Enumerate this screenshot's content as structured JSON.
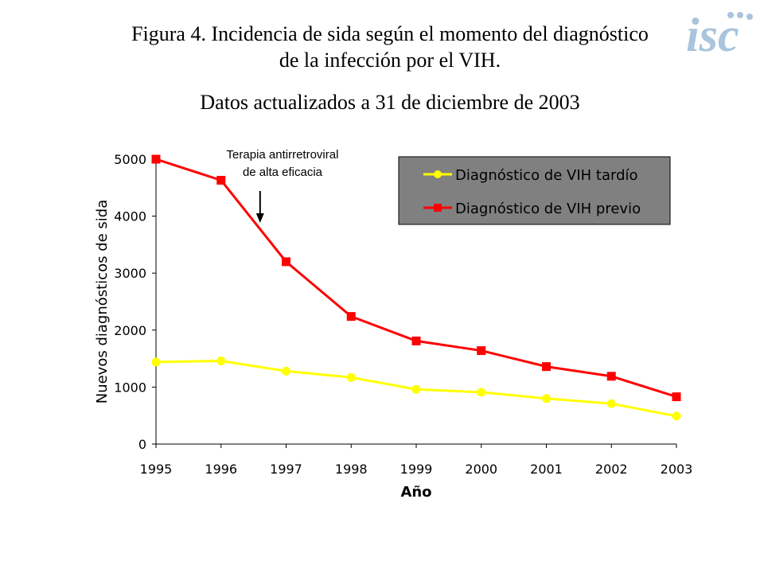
{
  "header": {
    "title_line1": "Figura 4. Incidencia de sida según el momento del diagnóstico",
    "title_line2": "de la infección por el VIH.",
    "subtitle": "Datos actualizados a 31 de diciembre de 2003",
    "logo_text": "isc"
  },
  "annotation": {
    "line1": "Terapia antirretroviral",
    "line2": "de alta eficacia",
    "arrow_x": 1996.6
  },
  "colors": {
    "series_late": "#ffff00",
    "series_prev": "#ff0000",
    "legend_bg": "#808080",
    "logo": "#a9c4dc"
  },
  "chart_data": {
    "type": "line",
    "xlabel": "Año",
    "ylabel": "Nuevos diagnósticos de sida",
    "x": [
      1995,
      1996,
      1997,
      1998,
      1999,
      2000,
      2001,
      2002,
      2003
    ],
    "xlim": [
      1995,
      2003
    ],
    "ylim": [
      0,
      5000
    ],
    "yticks": [
      0,
      1000,
      2000,
      3000,
      4000,
      5000
    ],
    "grid": false,
    "legend_position": "top-right",
    "series": [
      {
        "name": "Diagnóstico de VIH tardío",
        "marker": "circle",
        "color": "#ffff00",
        "values": [
          1440,
          1460,
          1280,
          1170,
          960,
          910,
          800,
          710,
          490
        ]
      },
      {
        "name": "Diagnóstico de VIH previo",
        "marker": "square",
        "color": "#ff0000",
        "values": [
          5000,
          4630,
          3200,
          2240,
          1810,
          1640,
          1360,
          1190,
          830
        ]
      }
    ]
  }
}
